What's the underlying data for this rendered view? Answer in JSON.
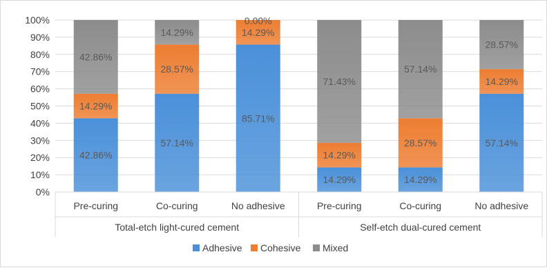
{
  "chart_data": {
    "type": "bar",
    "stacked": true,
    "percent_axis": true,
    "title": "",
    "xlabel": "",
    "ylabel": "",
    "ylim": [
      0,
      100
    ],
    "yticks": [
      "0%",
      "10%",
      "20%",
      "30%",
      "40%",
      "50%",
      "60%",
      "70%",
      "80%",
      "90%",
      "100%"
    ],
    "grid": true,
    "legend_position": "bottom",
    "groups": [
      {
        "label": "Total-etch light-cured cement",
        "categories": [
          "Pre-curing",
          "Co-curing",
          "No adhesive"
        ]
      },
      {
        "label": "Self-etch dual-cured cement",
        "categories": [
          "Pre-curing",
          "Co-curing",
          "No adhesive"
        ]
      }
    ],
    "categories": [
      "Pre-curing",
      "Co-curing",
      "No adhesive",
      "Pre-curing",
      "Co-curing",
      "No adhesive"
    ],
    "series": [
      {
        "name": "Adhesive",
        "color": "#4a90d9",
        "values": [
          42.86,
          57.14,
          85.71,
          14.29,
          14.29,
          57.14
        ]
      },
      {
        "name": "Cohesive",
        "color": "#ed7d31",
        "values": [
          14.29,
          28.57,
          14.29,
          14.29,
          28.57,
          14.29
        ]
      },
      {
        "name": "Mixed",
        "color": "#8c8c8c",
        "values": [
          42.86,
          14.29,
          0.0,
          71.43,
          57.14,
          28.57
        ]
      }
    ],
    "data_labels": [
      [
        "42.86%",
        "57.14%",
        "85.71%",
        "14.29%",
        "14.29%",
        "57.14%"
      ],
      [
        "14.29%",
        "28.57%",
        "14.29%",
        "14.29%",
        "28.57%",
        "14.29%"
      ],
      [
        "42.86%",
        "14.29%",
        "0.00%",
        "71.43%",
        "57.14%",
        "28.57%"
      ]
    ]
  }
}
